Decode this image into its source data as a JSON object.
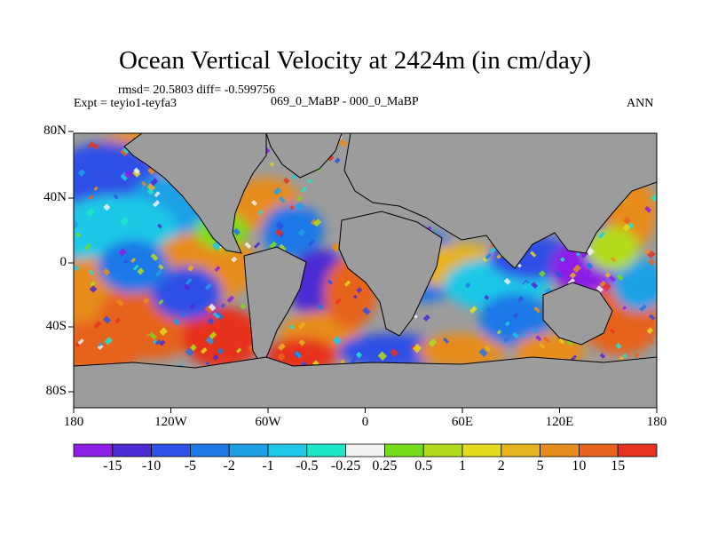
{
  "title": "Ocean Vertical Velocity at 2424m (in cm/day)",
  "stats": "rmsd= 20.5803 diff= -0.599756",
  "experiment": "Expt = teyio1-teyfa3",
  "comparison": "069_0_MaBP - 000_0_MaBP",
  "season": "ANN",
  "lat_ticks": [
    "80N",
    "40N",
    "0",
    "40S",
    "80S"
  ],
  "lon_ticks": [
    "180",
    "120W",
    "60W",
    "0",
    "60E",
    "120E",
    "180"
  ],
  "land_color": "#9c9c9c",
  "colorbar": {
    "colors": [
      "#8c1ee6",
      "#4b2ad2",
      "#2d50e6",
      "#1e78e6",
      "#1ea0e6",
      "#1ec8e6",
      "#1ee6c8",
      "#f2f2f2",
      "#78dc1e",
      "#b4dc1e",
      "#e6dc1e",
      "#e6b41e",
      "#e68c1e",
      "#e6641e",
      "#e6321e"
    ],
    "labels": [
      "-15",
      "-10",
      "-5",
      "-2",
      "-1",
      "-0.5",
      "-0.25",
      "0.25",
      "0.5",
      "1",
      "2",
      "5",
      "10",
      "15"
    ]
  }
}
